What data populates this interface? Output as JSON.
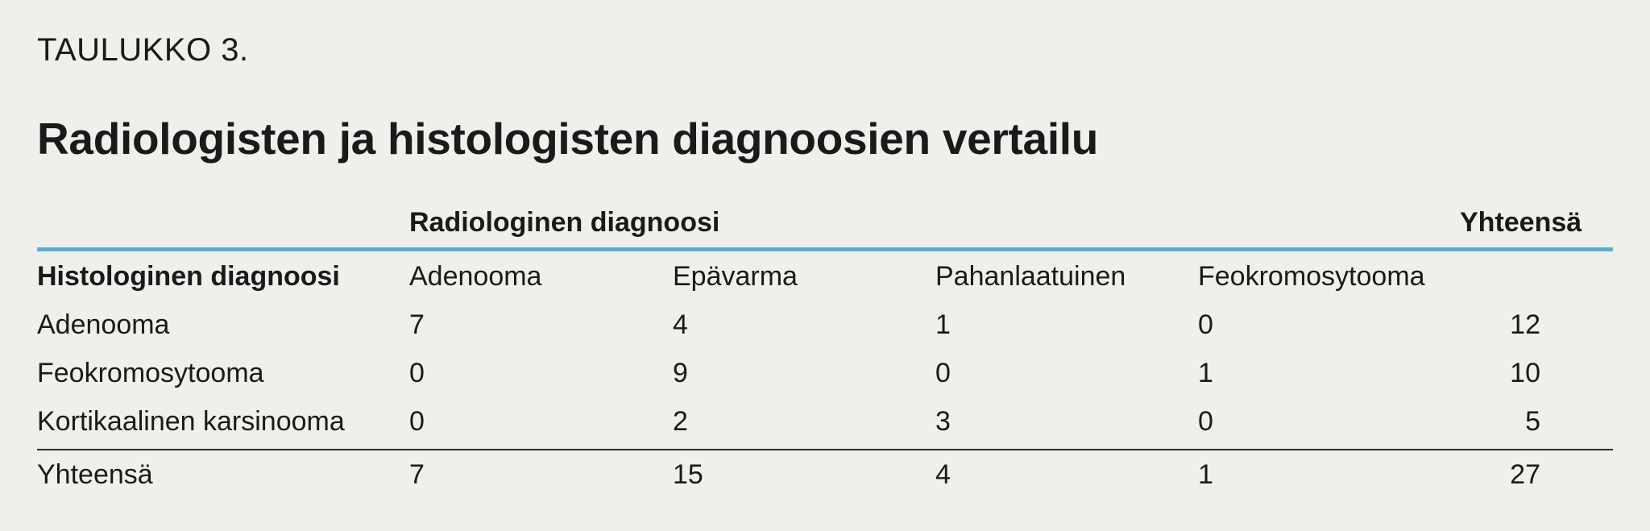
{
  "table": {
    "label": "TAULUKKO 3.",
    "title": "Radiologisten ja histologisten diagnoosien vertailu",
    "group_header": "Radiologinen diagnoosi",
    "total_header": "Yhteensä",
    "row_header": "Histologinen diagnoosi",
    "columns": [
      "Adenooma",
      "Epävarma",
      "Pahanlaatuinen",
      "Feokromosytooma"
    ],
    "rows": [
      {
        "label": "Adenooma",
        "values": [
          "7",
          "4",
          "1",
          "0"
        ],
        "total": "12"
      },
      {
        "label": "Feokromosytooma",
        "values": [
          "0",
          "9",
          "0",
          "1"
        ],
        "total": "10"
      },
      {
        "label": "Kortikaalinen karsinooma",
        "values": [
          "0",
          "2",
          "3",
          "0"
        ],
        "total": "5"
      }
    ],
    "totals_row": {
      "label": "Yhteensä",
      "values": [
        "7",
        "15",
        "4",
        "1"
      ],
      "total": "27"
    },
    "colors": {
      "rule_accent": "#5aaed3",
      "background": "#f1efec"
    }
  }
}
